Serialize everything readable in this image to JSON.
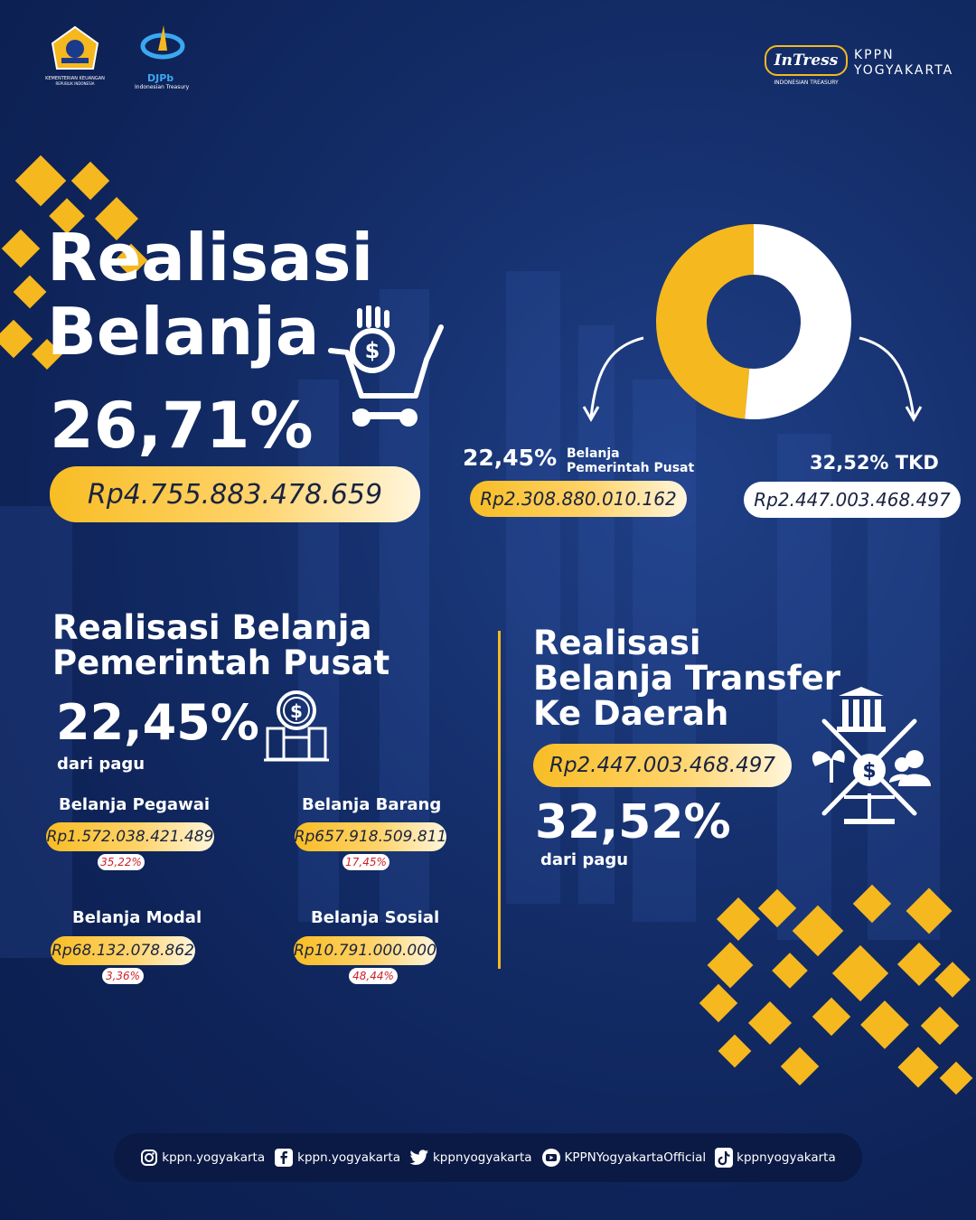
{
  "header": {
    "logo1_caption": "KEMENTERIAN KEUANGAN",
    "logo1_sub": "REPUBLIK INDONESIA",
    "logo2_text": "DJPb",
    "logo2_sub": "Indonesian Treasury",
    "brand_logo": "InTress",
    "brand_sub": "INDONESIAN TREASURY",
    "kppn_line1": "KPPN",
    "kppn_line2": "YOGYAKARTA"
  },
  "hero": {
    "title_line1": "Realisasi",
    "title_line2": "Belanja",
    "percent": "26,71%",
    "amount": "Rp4.755.883.478.659",
    "icon": "shopping-cart-dollar-icon"
  },
  "donut": {
    "segments": [
      {
        "name": "Belanja Pemerintah Pusat",
        "value": 2308880010162,
        "color": "#f6b81f"
      },
      {
        "name": "TKD",
        "value": 2447003468497,
        "color": "#ffffff"
      }
    ],
    "left": {
      "percent": "22,45%",
      "label_line1": "Belanja",
      "label_line2": "Pemerintah Pusat",
      "amount": "Rp2.308.880.010.162"
    },
    "right": {
      "percent": "32,52%",
      "label": "TKD",
      "amount": "Rp2.447.003.468.497"
    }
  },
  "central": {
    "title_line1": "Realisasi Belanja",
    "title_line2": "Pemerintah Pusat",
    "percent": "22,45%",
    "sub": "dari pagu",
    "icon": "building-dollar-icon",
    "items": [
      {
        "label": "Belanja Pegawai",
        "amount": "Rp1.572.038.421.489",
        "pct": "35,22%"
      },
      {
        "label": "Belanja Barang",
        "amount": "Rp657.918.509.811",
        "pct": "17,45%"
      },
      {
        "label": "Belanja Modal",
        "amount": "Rp68.132.078.862",
        "pct": "3,36%"
      },
      {
        "label": "Belanja Sosial",
        "amount": "Rp10.791.000.000",
        "pct": "48,44%"
      }
    ]
  },
  "transfer": {
    "title_line1": "Realisasi",
    "title_line2": "Belanja Transfer",
    "title_line3": "Ke Daerah",
    "amount": "Rp2.447.003.468.497",
    "percent": "32,52%",
    "sub": "dari pagu",
    "icon": "regional-transfer-icon"
  },
  "footer": {
    "items": [
      {
        "icon": "instagram-icon",
        "label": "kppn.yogyakarta"
      },
      {
        "icon": "facebook-icon",
        "label": "kppn.yogyakarta"
      },
      {
        "icon": "twitter-icon",
        "label": "kppnyogyakarta"
      },
      {
        "icon": "youtube-icon",
        "label": "KPPNYogyakartaOfficial"
      },
      {
        "icon": "tiktok-icon",
        "label": "kppnyogyakarta"
      }
    ]
  },
  "colors": {
    "accent": "#f6b81f",
    "background": "#12296a",
    "badge_text": "#d0202a"
  }
}
